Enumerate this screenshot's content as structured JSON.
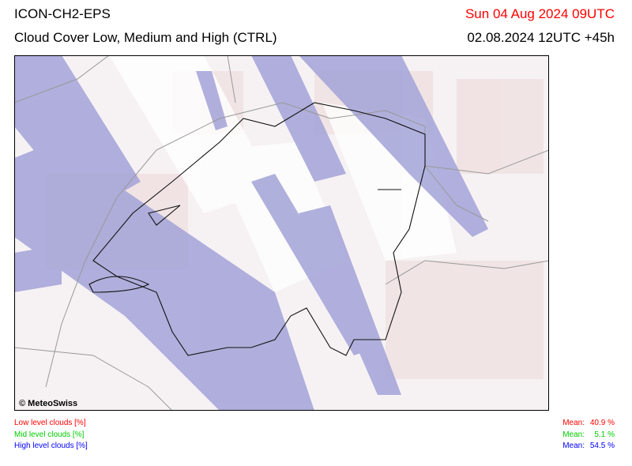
{
  "header": {
    "model": "ICON-CH2-EPS",
    "title": "Cloud Cover Low, Medium and High (CTRL)",
    "valid_time": "Sun 04 Aug 2024 09UTC",
    "run_time": "02.08.2024 12UTC +45h"
  },
  "map": {
    "credit": "© MeteoSwiss"
  },
  "legend": [
    {
      "label": "Low level clouds [%]",
      "mean_label": "Mean:",
      "mean": "40.9 %",
      "color": "#ff0000"
    },
    {
      "label": "Mid level clouds [%]",
      "mean_label": "Mean:",
      "mean": "5.1 %",
      "color": "#00cc00"
    },
    {
      "label": "High level clouds [%]",
      "mean_label": "Mean:",
      "mean": "54.5 %",
      "color": "#0000ff"
    }
  ]
}
